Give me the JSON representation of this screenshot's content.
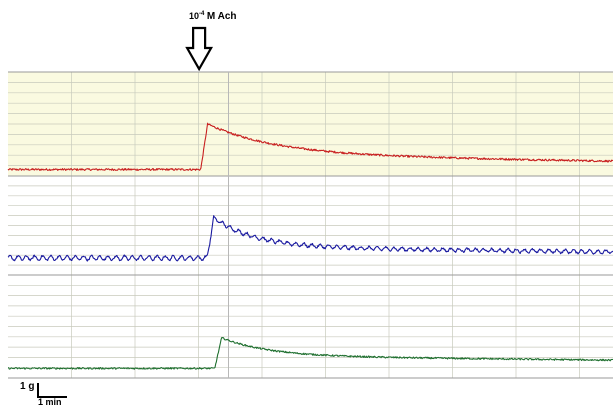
{
  "chart_data": {
    "type": "line",
    "annotation": {
      "concentration": "10",
      "exponent": "-4",
      "rest": "M Ach"
    },
    "scale_bar": {
      "y_label": "1 g",
      "x_label": "1 min"
    },
    "colors": {
      "panel1_bg": "#fafae0",
      "panel2_bg": "#ffffff",
      "panel3_bg": "#ffffff",
      "grid_line": "#c8cabc",
      "panel_border": "#9a9a9a",
      "arrow": "#000000"
    },
    "x_range_min": [
      0,
      19.4
    ],
    "stimulus_time_min": 6.0,
    "series": [
      {
        "color": "#c82020",
        "y_range_g": [
          0,
          3.2
        ],
        "baseline": 0.2,
        "peak_time": 6.4,
        "peak": 1.6,
        "plateau": 0.65,
        "decay_tau": 2.2,
        "drift_per_min": 0.015,
        "noise": 0.03,
        "oscillation": 0.0,
        "points": [
          [
            0,
            0.2
          ],
          [
            5.9,
            0.2
          ],
          [
            6.1,
            1.4
          ],
          [
            6.4,
            1.6
          ],
          [
            7.5,
            1.1
          ],
          [
            10,
            0.8
          ],
          [
            15,
            0.6
          ],
          [
            19.4,
            0.5
          ]
        ]
      },
      {
        "color": "#1a1aa0",
        "y_range_g": [
          0,
          3.2
        ],
        "baseline": 0.55,
        "peak_time": 6.6,
        "peak": 1.85,
        "plateau": 0.9,
        "decay_tau": 1.3,
        "drift_per_min": 0.012,
        "noise": 0.03,
        "oscillation": 0.07,
        "points": [
          [
            0,
            0.55
          ],
          [
            6.3,
            0.55
          ],
          [
            6.45,
            1.6
          ],
          [
            6.6,
            1.85
          ],
          [
            8,
            1.3
          ],
          [
            12,
            1.0
          ],
          [
            19.4,
            0.8
          ]
        ]
      },
      {
        "color": "#207030",
        "y_range_g": [
          0,
          3.2
        ],
        "baseline": 0.3,
        "peak_time": 6.85,
        "peak": 1.25,
        "plateau": 0.68,
        "decay_tau": 1.5,
        "drift_per_min": 0.01,
        "noise": 0.025,
        "oscillation": 0.0,
        "points": [
          [
            0,
            0.3
          ],
          [
            6.6,
            0.3
          ],
          [
            6.75,
            1.15
          ],
          [
            6.85,
            1.25
          ],
          [
            8.5,
            0.85
          ],
          [
            12,
            0.7
          ],
          [
            19.4,
            0.6
          ]
        ]
      }
    ]
  }
}
